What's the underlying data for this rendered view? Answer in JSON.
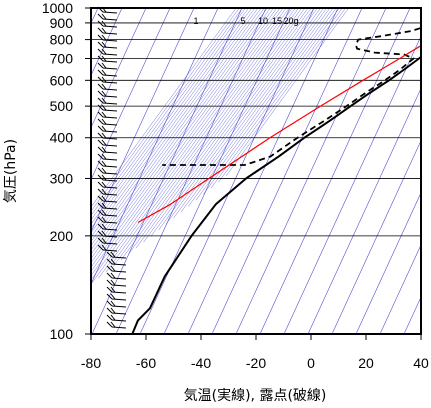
{
  "chart_data": {
    "type": "skew-t log-p sounding",
    "xlabel": "気温(実線), 露点(破線)",
    "ylabel": "気圧(hPa)",
    "x_axis": {
      "range": [
        -80,
        40
      ],
      "ticks": [
        -80,
        -60,
        -40,
        -20,
        0,
        20,
        40
      ]
    },
    "y_axis": {
      "scale": "log",
      "range": [
        1000,
        100
      ],
      "ticks": [
        100,
        200,
        300,
        400,
        500,
        600,
        700,
        800,
        900,
        1000
      ]
    },
    "mixing_ratio_labels": [
      "1",
      "5",
      "10",
      "15",
      "20g"
    ],
    "grid": true,
    "colors": {
      "temperature": "#000000",
      "dewpoint": "#000000",
      "parcel": "#ff0000",
      "background_lines": "#3333cc",
      "frame": "#000000"
    },
    "series": [
      {
        "name": "",
        "points": [
          [
            1000,
            13.0
          ],
          [
            950,
            8.0
          ],
          [
            900,
            6.0
          ],
          [
            850,
            4.5
          ],
          [
            800,
            2.5
          ],
          [
            750,
            0.0
          ],
          [
            700,
            -3.0
          ],
          [
            650,
            -6.5
          ],
          [
            600,
            -10.5
          ],
          [
            550,
            -15.5
          ],
          [
            500,
            -20.5
          ],
          [
            450,
            -26.0
          ],
          [
            400,
            -32.5
          ],
          [
            350,
            -39.0
          ],
          [
            300,
            -47.5
          ],
          [
            250,
            -54.5
          ],
          [
            200,
            -58.5
          ],
          [
            150,
            -62.0
          ],
          [
            120,
            -62.5
          ],
          [
            110,
            -65.0
          ],
          [
            100,
            -65.0
          ]
        ]
      },
      {
        "name": "",
        "points": [
          [
            1000,
            13.0
          ],
          [
            960,
            -1.0
          ],
          [
            930,
            -1.5
          ],
          [
            900,
            -2.0
          ],
          [
            850,
            -10.0
          ],
          [
            820,
            -20.0
          ],
          [
            800,
            -28.0
          ],
          [
            770,
            -28.0
          ],
          [
            750,
            -27.0
          ],
          [
            730,
            -20.0
          ],
          [
            720,
            -9.0
          ],
          [
            700,
            -5.0
          ],
          [
            650,
            -8.0
          ],
          [
            600,
            -12.0
          ],
          [
            550,
            -17.0
          ],
          [
            500,
            -22.0
          ],
          [
            450,
            -28.0
          ],
          [
            400,
            -35.0
          ],
          [
            350,
            -42.0
          ],
          [
            330,
            -50.0
          ],
          [
            330,
            -80.0
          ]
        ]
      },
      {
        "name": "",
        "points": [
          [
            1000,
            13.0
          ],
          [
            900,
            5.5
          ],
          [
            800,
            -1.5
          ],
          [
            700,
            -10.0
          ],
          [
            600,
            -20.0
          ],
          [
            500,
            -31.5
          ],
          [
            400,
            -45.0
          ],
          [
            300,
            -61.0
          ],
          [
            250,
            -71.0
          ],
          [
            220,
            -80.0
          ]
        ]
      }
    ]
  }
}
